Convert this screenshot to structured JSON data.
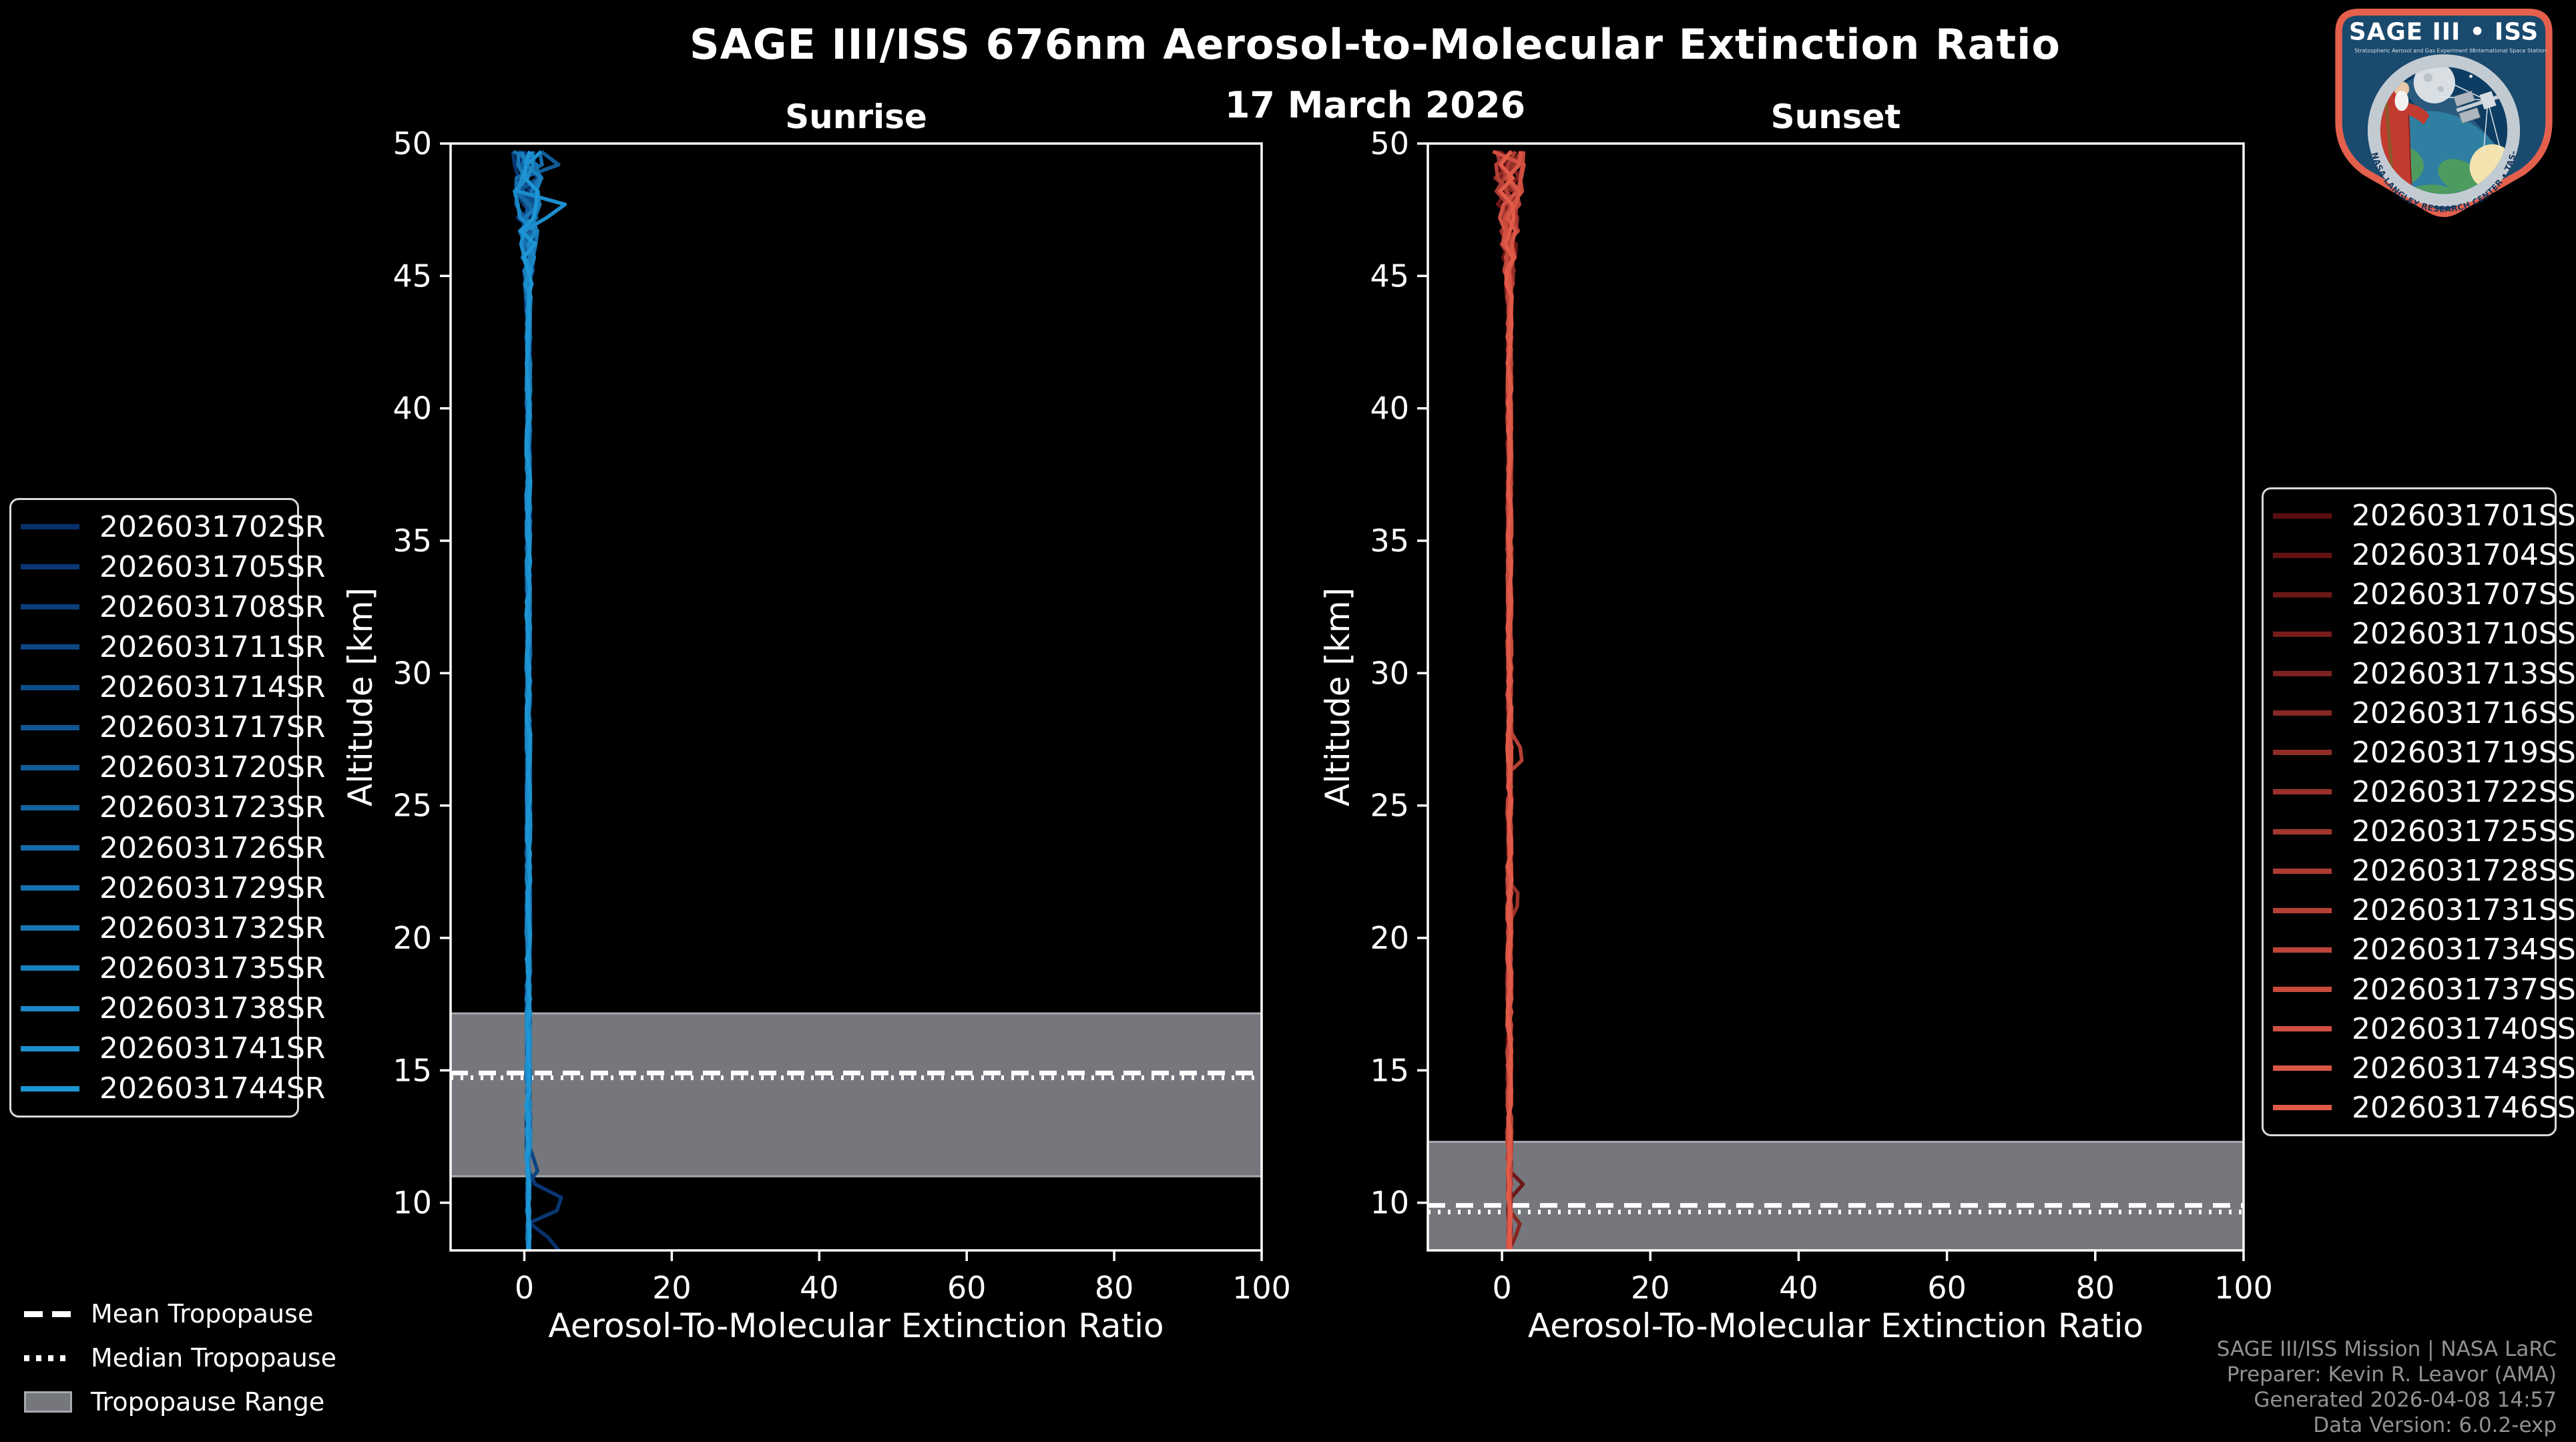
{
  "header": {
    "title": "SAGE III/ISS 676nm Aerosol-to-Molecular Extinction Ratio",
    "subtitle": "17 March 2026"
  },
  "logo": {
    "mission": "SAGE III • ISS",
    "left_caption": "Stratospheric Aerosol and Gas Experiment III",
    "right_caption": "International Space Station",
    "ring_text": "BALL • NASA LANGLEY RESEARCH CENTER • TAS-I • ESA"
  },
  "tropopause_legend": {
    "mean_label": "Mean Tropopause",
    "median_label": "Median Tropopause",
    "range_label": "Tropopause Range"
  },
  "footer": {
    "lines": [
      "SAGE III/ISS Mission | NASA LaRC",
      "Preparer: Kevin R. Leavor (AMA)",
      "Generated 2026-04-08 14:57",
      "Data Version: 6.0.2-exp"
    ]
  },
  "colors": {
    "background": "#000000",
    "spine": "#FFFFFF",
    "tick_text": "#FFFFFF",
    "band": "#75777C",
    "band_edge": "#A6A9AE",
    "tropo_line": "#FFFFFF",
    "footer_text": "#8F9193"
  },
  "chart_data": [
    {
      "type": "line",
      "title": "Sunrise",
      "xlabel": "Aerosol-To-Molecular Extinction Ratio",
      "ylabel": "Altitude [km]",
      "xlim": [
        -10,
        100
      ],
      "ylim": [
        8.2,
        50
      ],
      "xticks": [
        0,
        20,
        40,
        60,
        80,
        100
      ],
      "yticks": [
        10,
        15,
        20,
        25,
        30,
        35,
        40,
        45,
        50
      ],
      "grid": false,
      "legend_position": "outside-left",
      "tropopause": {
        "mean_km": 14.9,
        "median_km": 14.72,
        "range_km": [
          11.0,
          17.15
        ]
      },
      "profile_model": {
        "center_ratio": 0.55,
        "mid_noise_amp": 0.3,
        "high_alt_start_km": 44,
        "high_alt_max_amp": 2.6,
        "low_alt_start_km": 11.5,
        "low_alt_amp": 0.2,
        "alt_step_km": 0.5,
        "seed": 20260317,
        "anomalies": [
          {
            "series": 1,
            "alt_km": 10.0,
            "half_width_km": 0.8,
            "peak_ratio": 6.2
          },
          {
            "series": 0,
            "alt_km": 8.3,
            "half_width_km": 1.0,
            "peak_ratio": 4.6
          },
          {
            "series": 3,
            "alt_km": 11.4,
            "half_width_km": 0.5,
            "peak_ratio": 1.8
          },
          {
            "series": 13,
            "alt_km": 47.6,
            "half_width_km": 0.6,
            "peak_ratio": 7.0
          },
          {
            "series": 6,
            "alt_km": 49.2,
            "half_width_km": 0.5,
            "peak_ratio": 4.0
          }
        ]
      },
      "series": [
        {
          "label": "2026031702SR",
          "color": "#08306B"
        },
        {
          "label": "2026031705SR",
          "color": "#0A3773"
        },
        {
          "label": "2026031708SR",
          "color": "#0B3E7A"
        },
        {
          "label": "2026031711SR",
          "color": "#0D4582"
        },
        {
          "label": "2026031714SR",
          "color": "#0E4D89"
        },
        {
          "label": "2026031717SR",
          "color": "#105491"
        },
        {
          "label": "2026031720SR",
          "color": "#115B98"
        },
        {
          "label": "2026031723SR",
          "color": "#1363A0"
        },
        {
          "label": "2026031726SR",
          "color": "#156AA7"
        },
        {
          "label": "2026031729SR",
          "color": "#1671AF"
        },
        {
          "label": "2026031732SR",
          "color": "#1878B6"
        },
        {
          "label": "2026031735SR",
          "color": "#1980BE"
        },
        {
          "label": "2026031738SR",
          "color": "#1B87C5"
        },
        {
          "label": "2026031741SR",
          "color": "#1C8ECD"
        },
        {
          "label": "2026031744SR",
          "color": "#1E95D4"
        }
      ]
    },
    {
      "type": "line",
      "title": "Sunset",
      "xlabel": "Aerosol-To-Molecular Extinction Ratio",
      "ylabel": "Altitude [km]",
      "xlim": [
        -10,
        100
      ],
      "ylim": [
        8.2,
        50
      ],
      "xticks": [
        0,
        20,
        40,
        60,
        80,
        100
      ],
      "yticks": [
        10,
        15,
        20,
        25,
        30,
        35,
        40,
        45,
        50
      ],
      "grid": false,
      "legend_position": "outside-right",
      "tropopause": {
        "mean_km": 9.9,
        "median_km": 9.65,
        "range_km": [
          8.2,
          12.3
        ]
      },
      "profile_model": {
        "center_ratio": 1.0,
        "mid_noise_amp": 0.32,
        "high_alt_start_km": 44,
        "high_alt_max_amp": 2.4,
        "low_alt_start_km": 11.5,
        "low_alt_amp": 0.25,
        "alt_step_km": 0.5,
        "seed": 20260318,
        "anomalies": [
          {
            "series": 2,
            "alt_km": 10.6,
            "half_width_km": 0.5,
            "peak_ratio": 2.6
          },
          {
            "series": 5,
            "alt_km": 9.0,
            "half_width_km": 0.5,
            "peak_ratio": 2.4
          },
          {
            "series": 10,
            "alt_km": 27.0,
            "half_width_km": 0.8,
            "peak_ratio": 2.2
          },
          {
            "series": 7,
            "alt_km": 21.5,
            "half_width_km": 0.6,
            "peak_ratio": 1.6
          },
          {
            "series": 12,
            "alt_km": 48.5,
            "half_width_km": 0.5,
            "peak_ratio": 3.5
          }
        ]
      },
      "series": [
        {
          "label": "2026031701SS",
          "color": "#5A0D10"
        },
        {
          "label": "2026031704SS",
          "color": "#631214"
        },
        {
          "label": "2026031707SS",
          "color": "#6C1717"
        },
        {
          "label": "2026031710SS",
          "color": "#751C1B"
        },
        {
          "label": "2026031713SS",
          "color": "#7E221F"
        },
        {
          "label": "2026031716SS",
          "color": "#872723"
        },
        {
          "label": "2026031719SS",
          "color": "#902C26"
        },
        {
          "label": "2026031722SS",
          "color": "#9A312A"
        },
        {
          "label": "2026031725SS",
          "color": "#A3362E"
        },
        {
          "label": "2026031728SS",
          "color": "#AC3B32"
        },
        {
          "label": "2026031731SS",
          "color": "#B54035"
        },
        {
          "label": "2026031734SS",
          "color": "#BE4539"
        },
        {
          "label": "2026031737SS",
          "color": "#C74B3D"
        },
        {
          "label": "2026031740SS",
          "color": "#D05041"
        },
        {
          "label": "2026031743SS",
          "color": "#D95544"
        },
        {
          "label": "2026031746SS",
          "color": "#E25A48"
        }
      ]
    }
  ]
}
